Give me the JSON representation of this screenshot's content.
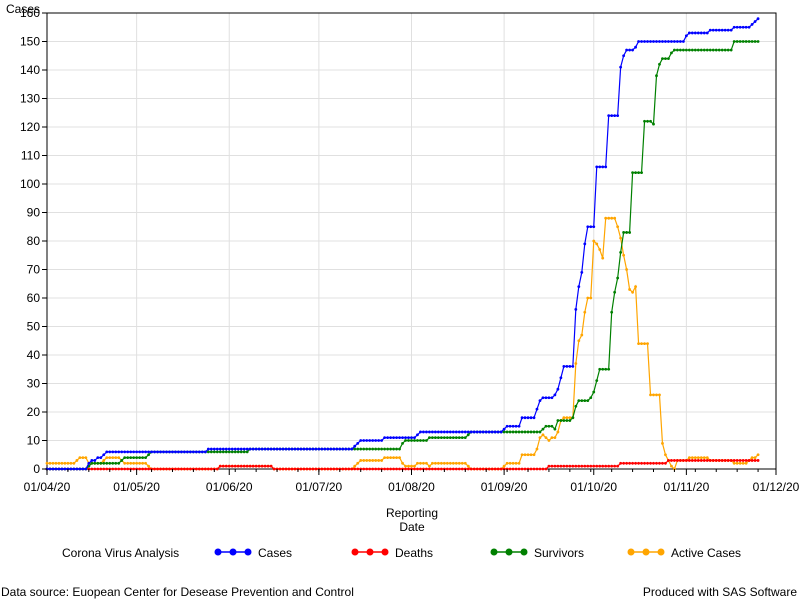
{
  "chart_data": {
    "type": "line",
    "title": "",
    "ylabel": "Cases",
    "xlabel_line1": "Reporting",
    "xlabel_line2": "Date",
    "ylim": [
      0,
      160
    ],
    "yticks": [
      0,
      10,
      20,
      30,
      40,
      50,
      60,
      70,
      80,
      90,
      100,
      110,
      120,
      130,
      140,
      150,
      160
    ],
    "xlim": [
      "2020-04-01",
      "2020-12-01"
    ],
    "xticks": [
      {
        "date": "2020-04-01",
        "label": "01/04/20"
      },
      {
        "date": "2020-05-01",
        "label": "01/05/20"
      },
      {
        "date": "2020-06-01",
        "label": "01/06/20"
      },
      {
        "date": "2020-07-01",
        "label": "01/07/20"
      },
      {
        "date": "2020-08-01",
        "label": "01/08/20"
      },
      {
        "date": "2020-09-01",
        "label": "01/09/20"
      },
      {
        "date": "2020-10-01",
        "label": "01/10/20"
      },
      {
        "date": "2020-11-01",
        "label": "01/11/20"
      },
      {
        "date": "2020-12-01",
        "label": "01/12/20"
      }
    ],
    "grid": true,
    "legend": {
      "label": "Corona Virus Analysis",
      "placement": "bottom"
    },
    "series": [
      {
        "name": "Cases",
        "color": "#0000ff",
        "points": [
          [
            "2020-04-01",
            0
          ],
          [
            "2020-04-14",
            0
          ],
          [
            "2020-04-15",
            2
          ],
          [
            "2020-04-16",
            3
          ],
          [
            "2020-04-18",
            4
          ],
          [
            "2020-04-20",
            5
          ],
          [
            "2020-04-21",
            6
          ],
          [
            "2020-05-04",
            6
          ],
          [
            "2020-05-05",
            6
          ],
          [
            "2020-05-24",
            6
          ],
          [
            "2020-05-25",
            7
          ],
          [
            "2020-06-07",
            7
          ],
          [
            "2020-06-08",
            7
          ],
          [
            "2020-07-12",
            7
          ],
          [
            "2020-07-13",
            8
          ],
          [
            "2020-07-14",
            9
          ],
          [
            "2020-07-15",
            10
          ],
          [
            "2020-07-22",
            10
          ],
          [
            "2020-07-23",
            11
          ],
          [
            "2020-08-02",
            11
          ],
          [
            "2020-08-03",
            12
          ],
          [
            "2020-08-04",
            13
          ],
          [
            "2020-08-31",
            13
          ],
          [
            "2020-09-01",
            14
          ],
          [
            "2020-09-02",
            15
          ],
          [
            "2020-09-06",
            15
          ],
          [
            "2020-09-07",
            18
          ],
          [
            "2020-09-11",
            18
          ],
          [
            "2020-09-12",
            21
          ],
          [
            "2020-09-13",
            24
          ],
          [
            "2020-09-14",
            25
          ],
          [
            "2020-09-18",
            26
          ],
          [
            "2020-09-19",
            28
          ],
          [
            "2020-09-20",
            32
          ],
          [
            "2020-09-21",
            36
          ],
          [
            "2020-09-24",
            36
          ],
          [
            "2020-09-25",
            56
          ],
          [
            "2020-09-26",
            64
          ],
          [
            "2020-09-27",
            69
          ],
          [
            "2020-09-28",
            79
          ],
          [
            "2020-09-29",
            85
          ],
          [
            "2020-10-01",
            85
          ],
          [
            "2020-10-02",
            106
          ],
          [
            "2020-10-05",
            106
          ],
          [
            "2020-10-06",
            124
          ],
          [
            "2020-10-09",
            124
          ],
          [
            "2020-10-10",
            141
          ],
          [
            "2020-10-11",
            145
          ],
          [
            "2020-10-12",
            147
          ],
          [
            "2020-10-14",
            147
          ],
          [
            "2020-10-15",
            148
          ],
          [
            "2020-10-16",
            150
          ],
          [
            "2020-10-31",
            150
          ],
          [
            "2020-11-01",
            152
          ],
          [
            "2020-11-02",
            153
          ],
          [
            "2020-11-08",
            153
          ],
          [
            "2020-11-09",
            154
          ],
          [
            "2020-11-16",
            154
          ],
          [
            "2020-11-17",
            155
          ],
          [
            "2020-11-22",
            155
          ],
          [
            "2020-11-23",
            156
          ],
          [
            "2020-11-24",
            157
          ],
          [
            "2020-11-25",
            158
          ]
        ]
      },
      {
        "name": "Deaths",
        "color": "#ff0000",
        "points": [
          [
            "2020-04-01",
            0
          ],
          [
            "2020-05-28",
            0
          ],
          [
            "2020-05-29",
            1
          ],
          [
            "2020-06-15",
            1
          ],
          [
            "2020-06-16",
            0
          ],
          [
            "2020-09-15",
            0
          ],
          [
            "2020-09-16",
            1
          ],
          [
            "2020-10-09",
            1
          ],
          [
            "2020-10-10",
            2
          ],
          [
            "2020-10-25",
            2
          ],
          [
            "2020-10-26",
            3
          ],
          [
            "2020-11-25",
            3
          ]
        ]
      },
      {
        "name": "Survivors",
        "color": "#008000",
        "points": [
          [
            "2020-04-01",
            0
          ],
          [
            "2020-04-14",
            0
          ],
          [
            "2020-04-15",
            1
          ],
          [
            "2020-04-16",
            2
          ],
          [
            "2020-04-25",
            2
          ],
          [
            "2020-04-26",
            3
          ],
          [
            "2020-04-27",
            4
          ],
          [
            "2020-05-04",
            4
          ],
          [
            "2020-05-05",
            5
          ],
          [
            "2020-05-06",
            6
          ],
          [
            "2020-06-07",
            6
          ],
          [
            "2020-06-08",
            7
          ],
          [
            "2020-07-28",
            7
          ],
          [
            "2020-07-29",
            9
          ],
          [
            "2020-07-30",
            10
          ],
          [
            "2020-08-06",
            10
          ],
          [
            "2020-08-07",
            11
          ],
          [
            "2020-08-19",
            11
          ],
          [
            "2020-08-20",
            12
          ],
          [
            "2020-08-21",
            13
          ],
          [
            "2020-09-13",
            13
          ],
          [
            "2020-09-14",
            14
          ],
          [
            "2020-09-15",
            15
          ],
          [
            "2020-09-17",
            15
          ],
          [
            "2020-09-18",
            14
          ],
          [
            "2020-09-19",
            17
          ],
          [
            "2020-09-23",
            17
          ],
          [
            "2020-09-24",
            18
          ],
          [
            "2020-09-25",
            22
          ],
          [
            "2020-09-26",
            24
          ],
          [
            "2020-09-29",
            24
          ],
          [
            "2020-09-30",
            25
          ],
          [
            "2020-10-01",
            27
          ],
          [
            "2020-10-02",
            31
          ],
          [
            "2020-10-03",
            35
          ],
          [
            "2020-10-06",
            35
          ],
          [
            "2020-10-07",
            55
          ],
          [
            "2020-10-08",
            62
          ],
          [
            "2020-10-09",
            67
          ],
          [
            "2020-10-10",
            76
          ],
          [
            "2020-10-11",
            83
          ],
          [
            "2020-10-13",
            83
          ],
          [
            "2020-10-14",
            104
          ],
          [
            "2020-10-17",
            104
          ],
          [
            "2020-10-18",
            122
          ],
          [
            "2020-10-20",
            122
          ],
          [
            "2020-10-21",
            121
          ],
          [
            "2020-10-22",
            138
          ],
          [
            "2020-10-23",
            142
          ],
          [
            "2020-10-24",
            144
          ],
          [
            "2020-10-26",
            144
          ],
          [
            "2020-10-27",
            146
          ],
          [
            "2020-10-28",
            147
          ],
          [
            "2020-11-16",
            147
          ],
          [
            "2020-11-17",
            150
          ],
          [
            "2020-11-25",
            150
          ]
        ]
      },
      {
        "name": "Active Cases",
        "color": "#ffa500",
        "points": [
          [
            "2020-04-01",
            2
          ],
          [
            "2020-04-10",
            2
          ],
          [
            "2020-04-11",
            3
          ],
          [
            "2020-04-12",
            4
          ],
          [
            "2020-04-14",
            4
          ],
          [
            "2020-04-15",
            2
          ],
          [
            "2020-04-19",
            2
          ],
          [
            "2020-04-20",
            3
          ],
          [
            "2020-04-21",
            4
          ],
          [
            "2020-04-25",
            4
          ],
          [
            "2020-04-26",
            3
          ],
          [
            "2020-04-27",
            2
          ],
          [
            "2020-05-04",
            2
          ],
          [
            "2020-05-05",
            1
          ],
          [
            "2020-05-06",
            0
          ],
          [
            "2020-05-28",
            0
          ],
          [
            "2020-05-29",
            1
          ],
          [
            "2020-06-15",
            1
          ],
          [
            "2020-06-16",
            0
          ],
          [
            "2020-07-12",
            0
          ],
          [
            "2020-07-13",
            1
          ],
          [
            "2020-07-14",
            2
          ],
          [
            "2020-07-15",
            3
          ],
          [
            "2020-07-22",
            3
          ],
          [
            "2020-07-23",
            4
          ],
          [
            "2020-07-28",
            4
          ],
          [
            "2020-07-29",
            2
          ],
          [
            "2020-07-30",
            1
          ],
          [
            "2020-08-02",
            1
          ],
          [
            "2020-08-03",
            2
          ],
          [
            "2020-08-06",
            2
          ],
          [
            "2020-08-07",
            1
          ],
          [
            "2020-08-08",
            2
          ],
          [
            "2020-08-19",
            2
          ],
          [
            "2020-08-20",
            1
          ],
          [
            "2020-08-21",
            0
          ],
          [
            "2020-08-31",
            0
          ],
          [
            "2020-09-01",
            1
          ],
          [
            "2020-09-02",
            2
          ],
          [
            "2020-09-06",
            2
          ],
          [
            "2020-09-07",
            5
          ],
          [
            "2020-09-11",
            5
          ],
          [
            "2020-09-12",
            7
          ],
          [
            "2020-09-13",
            11
          ],
          [
            "2020-09-14",
            12
          ],
          [
            "2020-09-15",
            11
          ],
          [
            "2020-09-16",
            10
          ],
          [
            "2020-09-17",
            11
          ],
          [
            "2020-09-18",
            11
          ],
          [
            "2020-09-19",
            13
          ],
          [
            "2020-09-20",
            17
          ],
          [
            "2020-09-21",
            18
          ],
          [
            "2020-09-24",
            18
          ],
          [
            "2020-09-25",
            37
          ],
          [
            "2020-09-26",
            45
          ],
          [
            "2020-09-27",
            47
          ],
          [
            "2020-09-28",
            55
          ],
          [
            "2020-09-29",
            60
          ],
          [
            "2020-09-30",
            60
          ],
          [
            "2020-10-01",
            80
          ],
          [
            "2020-10-02",
            79
          ],
          [
            "2020-10-03",
            77
          ],
          [
            "2020-10-04",
            74
          ],
          [
            "2020-10-05",
            88
          ],
          [
            "2020-10-08",
            88
          ],
          [
            "2020-10-09",
            85
          ],
          [
            "2020-10-10",
            81
          ],
          [
            "2020-10-11",
            75
          ],
          [
            "2020-10-12",
            70
          ],
          [
            "2020-10-13",
            63
          ],
          [
            "2020-10-14",
            62
          ],
          [
            "2020-10-15",
            64
          ],
          [
            "2020-10-16",
            44
          ],
          [
            "2020-10-19",
            44
          ],
          [
            "2020-10-20",
            26
          ],
          [
            "2020-10-23",
            26
          ],
          [
            "2020-10-24",
            9
          ],
          [
            "2020-10-25",
            5
          ],
          [
            "2020-10-26",
            3
          ],
          [
            "2020-10-27",
            1
          ],
          [
            "2020-10-28",
            0
          ],
          [
            "2020-10-29",
            3
          ],
          [
            "2020-11-01",
            3
          ],
          [
            "2020-11-02",
            4
          ],
          [
            "2020-11-08",
            4
          ],
          [
            "2020-11-09",
            3
          ],
          [
            "2020-11-16",
            3
          ],
          [
            "2020-11-17",
            2
          ],
          [
            "2020-11-20",
            2
          ],
          [
            "2020-11-21",
            2
          ],
          [
            "2020-11-22",
            3
          ],
          [
            "2020-11-23",
            4
          ],
          [
            "2020-11-25",
            5
          ]
        ]
      }
    ]
  },
  "footer": {
    "left": "Data source: Euopean Center for Desease Prevention and Control",
    "right": "Produced with SAS Software"
  }
}
